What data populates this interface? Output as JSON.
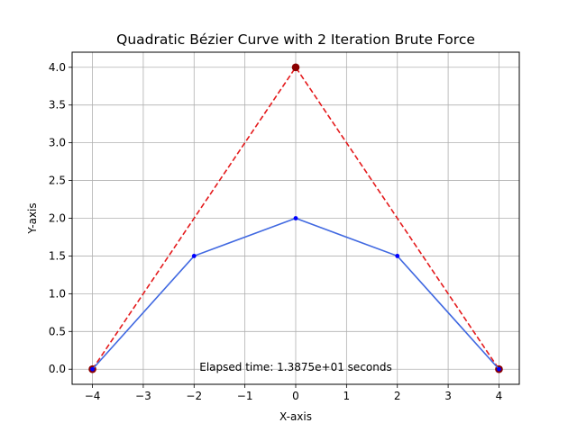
{
  "chart_data": {
    "type": "line",
    "title": "Quadratic Bézier Curve with 2 Iteration Brute Force",
    "xlabel": "X-axis",
    "ylabel": "Y-axis",
    "xlim": [
      -4.4,
      4.4
    ],
    "ylim": [
      -0.2,
      4.2
    ],
    "xticks": [
      -4,
      -3,
      -2,
      -1,
      0,
      1,
      2,
      3,
      4
    ],
    "xtick_labels": [
      "−4",
      "−3",
      "−2",
      "−1",
      "0",
      "1",
      "2",
      "3",
      "4"
    ],
    "yticks": [
      0.0,
      0.5,
      1.0,
      1.5,
      2.0,
      2.5,
      3.0,
      3.5,
      4.0
    ],
    "ytick_labels": [
      "0.0",
      "0.5",
      "1.0",
      "1.5",
      "2.0",
      "2.5",
      "3.0",
      "3.5",
      "4.0"
    ],
    "grid": true,
    "series": [
      {
        "role": "control-polygon",
        "style": "dashed",
        "color": "#e41a1c",
        "marker_color": "#8b0000",
        "x": [
          -4,
          0,
          4
        ],
        "y": [
          0,
          4,
          0
        ]
      },
      {
        "role": "bezier-approximation",
        "style": "solid",
        "color": "#4169e1",
        "marker_color": "#0000ff",
        "x": [
          -4,
          -2,
          0,
          2,
          4
        ],
        "y": [
          0,
          1.5,
          2,
          1.5,
          0
        ]
      }
    ],
    "annotation": {
      "text": "Elapsed time: 1.3875e+01 seconds",
      "x": 0,
      "y": 0
    }
  }
}
